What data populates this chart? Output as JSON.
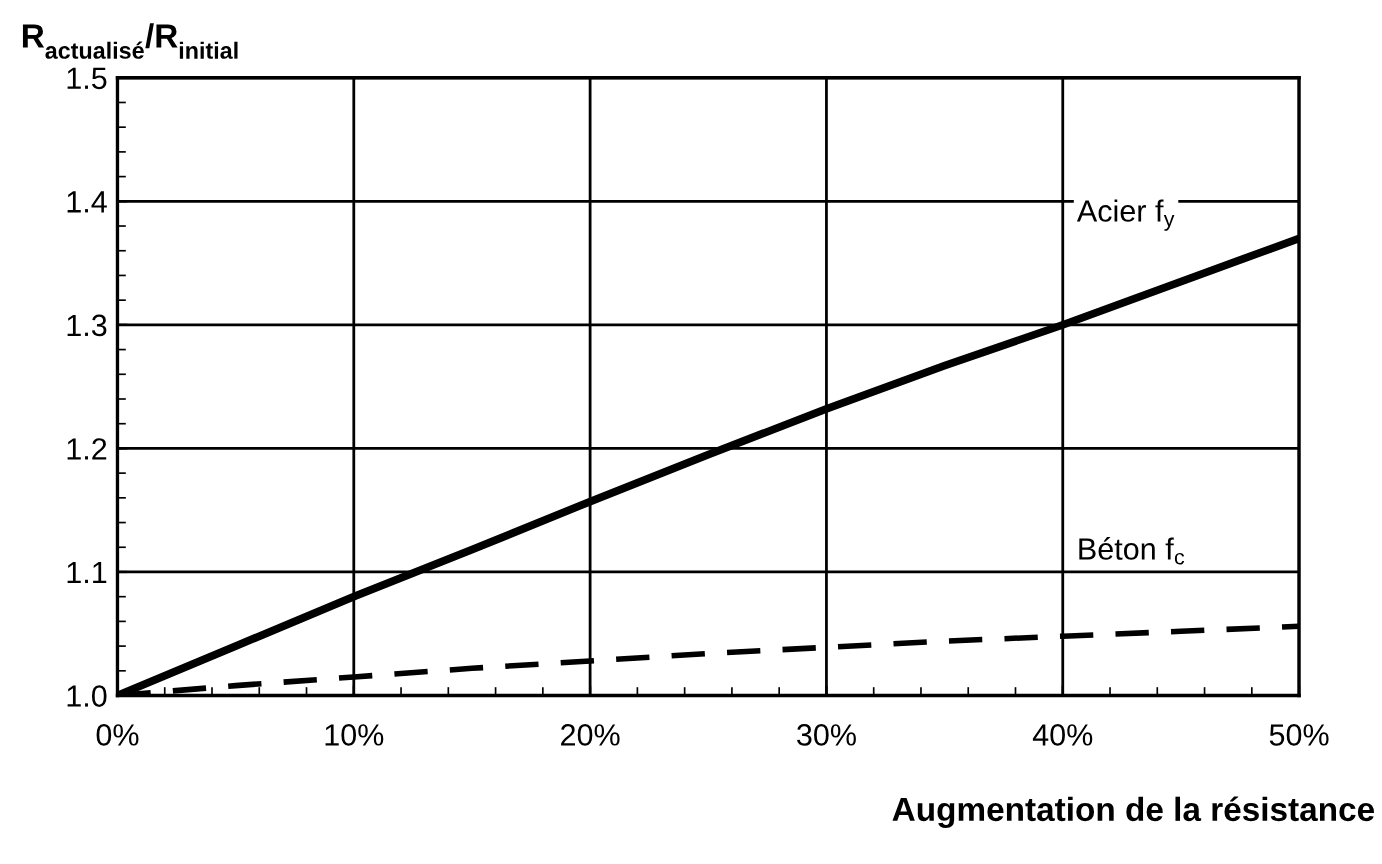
{
  "chart_data": {
    "type": "line",
    "ylabel": "R$_{actualisé}$/R$_{initial}$",
    "xlabel": "Augmentation de la résistance",
    "x": [
      0,
      5,
      10,
      15,
      20,
      25,
      30,
      35,
      40,
      45,
      50
    ],
    "series": [
      {
        "name": "Acier f$_{y}$",
        "color": "#000000",
        "line_style": "solid",
        "values": [
          1.0,
          1.04,
          1.08,
          1.118,
          1.157,
          1.195,
          1.232,
          1.267,
          1.3,
          1.335,
          1.37
        ]
      },
      {
        "name": "Béton f$_{c}$",
        "color": "#000000",
        "line_style": "dashed",
        "values": [
          1.0,
          1.008,
          1.015,
          1.022,
          1.028,
          1.034,
          1.039,
          1.044,
          1.048,
          1.052,
          1.056
        ]
      }
    ],
    "xlim": [
      0,
      50
    ],
    "xticks": [
      {
        "value": 0,
        "label": "0%"
      },
      {
        "value": 10,
        "label": "10%"
      },
      {
        "value": 20,
        "label": "20%"
      },
      {
        "value": 30,
        "label": "30%"
      },
      {
        "value": 40,
        "label": "40%"
      },
      {
        "value": 50,
        "label": "50%"
      }
    ],
    "ylim": [
      1.0,
      1.5
    ],
    "yticks": [
      {
        "value": 1.0,
        "label": "1.0"
      },
      {
        "value": 1.1,
        "label": "1.1"
      },
      {
        "value": 1.2,
        "label": "1.2"
      },
      {
        "value": 1.3,
        "label": "1.3"
      },
      {
        "value": 1.4,
        "label": "1.4"
      },
      {
        "value": 1.5,
        "label": "1.5"
      }
    ],
    "grid": true,
    "legend": false,
    "marker": "none"
  }
}
